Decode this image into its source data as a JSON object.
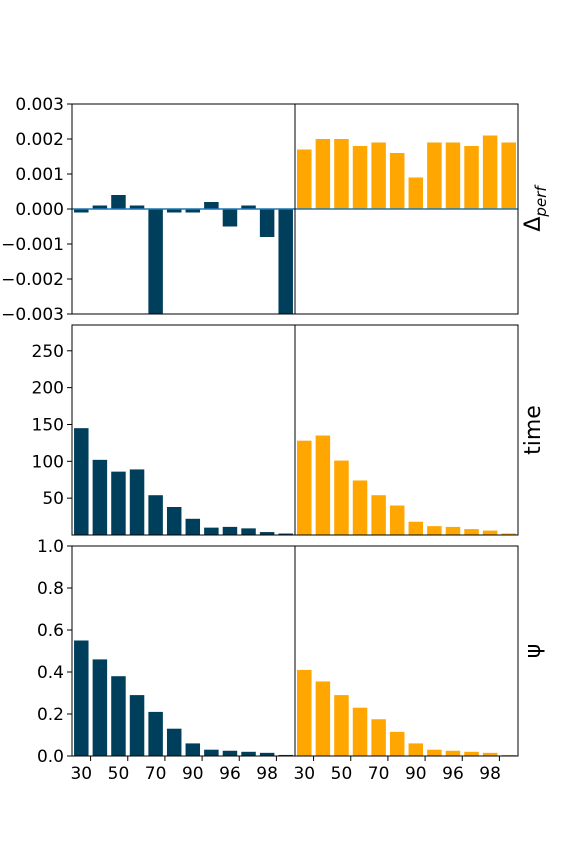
{
  "colors": {
    "left_bars": "#003f5c",
    "right_bars": "#ffa600",
    "zero_line": "#1f77b4",
    "frame": "#000000"
  },
  "x_tick_labels": [
    "30",
    "50",
    "70",
    "90",
    "96",
    "98"
  ],
  "chart_data": [
    {
      "type": "bar",
      "row_label": "Δ",
      "row_label_sub": "perf",
      "ylim": [
        -0.003,
        0.003
      ],
      "yticks": [
        -0.003,
        -0.002,
        -0.001,
        0.0,
        0.001,
        0.002,
        0.003
      ],
      "ytick_labels": [
        "−0.003",
        "−0.002",
        "−0.001",
        "0.000",
        "0.001",
        "0.002",
        "0.003"
      ],
      "zero_line": true,
      "series": [
        {
          "values": [
            -0.0001,
            0.0001,
            0.0004,
            0.0001,
            -0.0035,
            -0.0001,
            -0.0001,
            0.0002,
            -0.0005,
            0.0001,
            -0.0008,
            -0.0035
          ]
        },
        {
          "values": [
            0.0017,
            0.002,
            0.002,
            0.0018,
            0.0019,
            0.0016,
            0.0009,
            0.0019,
            0.0019,
            0.0018,
            0.0021,
            0.0019
          ]
        }
      ]
    },
    {
      "type": "bar",
      "row_label": "time",
      "ylim": [
        0,
        285
      ],
      "yticks": [
        50,
        100,
        150,
        200,
        250
      ],
      "ytick_labels": [
        "50",
        "100",
        "150",
        "200",
        "250"
      ],
      "series": [
        {
          "values": [
            145,
            102,
            86,
            89,
            54,
            38,
            22,
            10,
            11,
            9,
            4,
            2
          ]
        },
        {
          "values": [
            128,
            135,
            101,
            74,
            54,
            40,
            18,
            12,
            11,
            8,
            6,
            2
          ]
        }
      ]
    },
    {
      "type": "bar",
      "row_label": "ψ",
      "ylim": [
        0,
        1.0
      ],
      "yticks": [
        0.0,
        0.2,
        0.4,
        0.6,
        0.8,
        1.0
      ],
      "ytick_labels": [
        "0.0",
        "0.2",
        "0.4",
        "0.6",
        "0.8",
        "1.0"
      ],
      "series": [
        {
          "values": [
            0.55,
            0.46,
            0.38,
            0.29,
            0.21,
            0.13,
            0.06,
            0.03,
            0.025,
            0.02,
            0.015,
            0.005
          ]
        },
        {
          "values": [
            0.41,
            0.355,
            0.29,
            0.23,
            0.175,
            0.115,
            0.06,
            0.03,
            0.025,
            0.02,
            0.015,
            0.005
          ]
        }
      ]
    }
  ]
}
